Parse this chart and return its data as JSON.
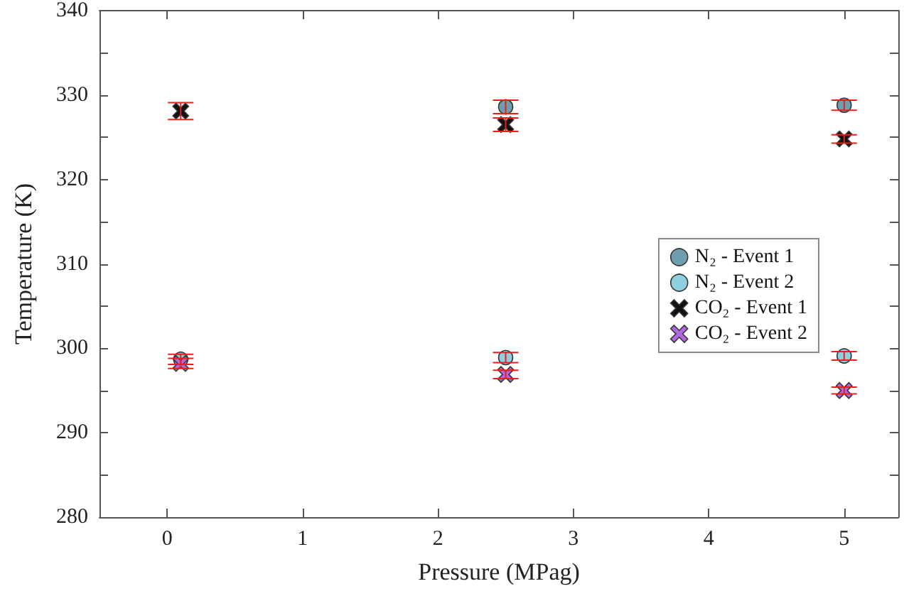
{
  "chart_data": {
    "type": "scatter",
    "xlabel": "Pressure (MPag)",
    "ylabel": "Temperature (K)",
    "xlim": [
      -0.5,
      5.4
    ],
    "xticks": [
      0,
      1,
      2,
      3,
      4,
      5
    ],
    "ylim": [
      280,
      340
    ],
    "yticks": [
      280,
      {
        "value": 285,
        "label": null
      },
      290,
      {
        "value": 295,
        "label": null
      },
      300,
      {
        "value": 305,
        "label": null
      },
      310,
      {
        "value": 315,
        "label": null
      },
      320,
      {
        "value": 325,
        "label": null
      },
      330,
      {
        "value": 335,
        "label": null
      },
      340
    ],
    "grid": false,
    "legend": "right",
    "series": [
      {
        "name": "N₂ - Event 1",
        "color": "#6f9fae",
        "marker": "circle",
        "x": [
          2.5,
          5.0
        ],
        "values": [
          328.6,
          328.8
        ],
        "errors": [
          0.8,
          0.6
        ]
      },
      {
        "name": "N₂ - Event 2",
        "color": "#8fd0df",
        "marker": "circle",
        "x": [
          0.1,
          2.5,
          5.0
        ],
        "values": [
          298.7,
          298.9,
          299.1
        ],
        "errors": [
          0.6,
          0.6,
          0.5
        ]
      },
      {
        "name": "CO₂ - Event 1",
        "color": "#111111",
        "marker": "cross",
        "x": [
          0.1,
          2.5,
          5.0
        ],
        "values": [
          328.1,
          326.5,
          324.8
        ],
        "errors": [
          1.0,
          0.8,
          0.5
        ]
      },
      {
        "name": "CO₂ - Event 2",
        "color": "#b168dc",
        "marker": "cross",
        "x": [
          0.1,
          2.5,
          5.0
        ],
        "values": [
          298.2,
          296.9,
          295.0
        ],
        "errors": [
          0.6,
          0.5,
          0.4
        ]
      }
    ]
  }
}
